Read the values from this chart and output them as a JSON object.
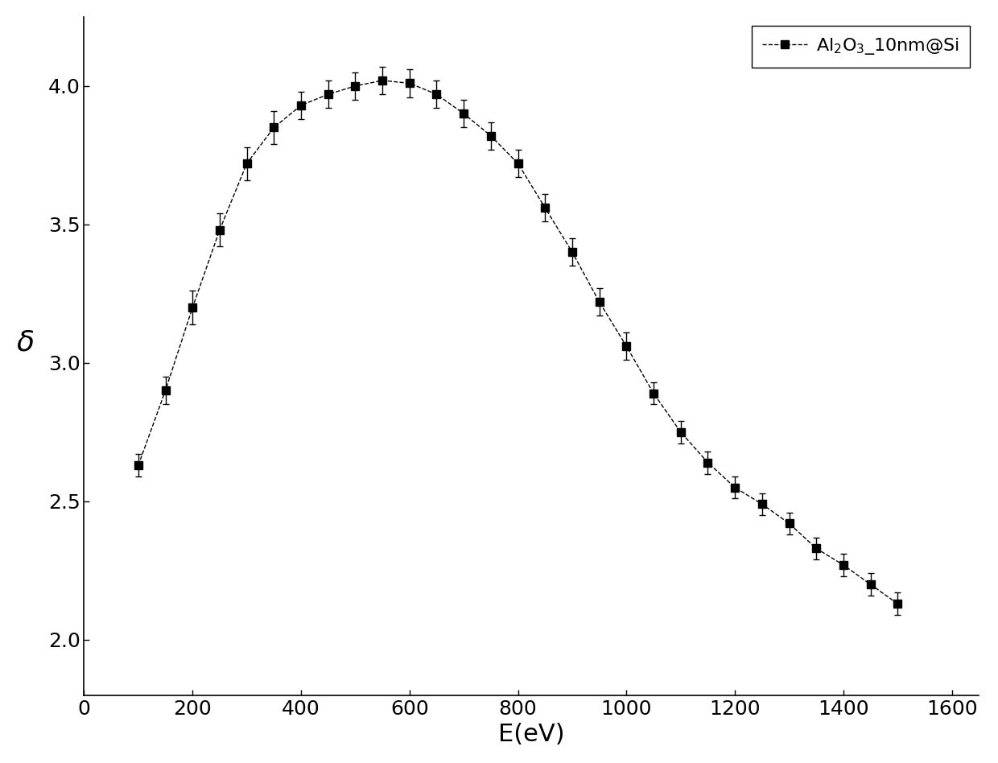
{
  "x": [
    100,
    150,
    200,
    250,
    300,
    350,
    400,
    450,
    500,
    550,
    600,
    650,
    700,
    750,
    800,
    850,
    900,
    950,
    1000,
    1050,
    1100,
    1150,
    1200,
    1250,
    1300,
    1350,
    1400,
    1450,
    1500
  ],
  "y": [
    2.63,
    2.9,
    3.2,
    3.48,
    3.72,
    3.85,
    3.93,
    3.97,
    4.0,
    4.02,
    4.01,
    3.97,
    3.9,
    3.82,
    3.72,
    3.56,
    3.4,
    3.22,
    3.06,
    2.89,
    2.75,
    2.64,
    2.55,
    2.49,
    2.42,
    2.33,
    2.27,
    2.2,
    2.13
  ],
  "yerr": [
    0.04,
    0.05,
    0.06,
    0.06,
    0.06,
    0.06,
    0.05,
    0.05,
    0.05,
    0.05,
    0.05,
    0.05,
    0.05,
    0.05,
    0.05,
    0.05,
    0.05,
    0.05,
    0.05,
    0.04,
    0.04,
    0.04,
    0.04,
    0.04,
    0.04,
    0.04,
    0.04,
    0.04,
    0.04
  ],
  "xlabel": "E(eV)",
  "ylabel": "δ",
  "legend_label": "Al$_2$O$_3$_10nm@Si",
  "xlim": [
    0,
    1650
  ],
  "ylim": [
    1.8,
    4.25
  ],
  "xticks": [
    0,
    200,
    400,
    600,
    800,
    1000,
    1200,
    1400,
    1600
  ],
  "yticks": [
    2.0,
    2.5,
    3.0,
    3.5,
    4.0
  ],
  "line_color": "#000000",
  "marker": "s",
  "marker_color": "#000000",
  "marker_size": 7,
  "line_style": "--",
  "line_width": 1.0,
  "xlabel_fontsize": 22,
  "ylabel_fontsize": 26,
  "tick_fontsize": 18,
  "legend_fontsize": 16,
  "figure_bg": "#ffffff",
  "axes_bg": "#ffffff"
}
